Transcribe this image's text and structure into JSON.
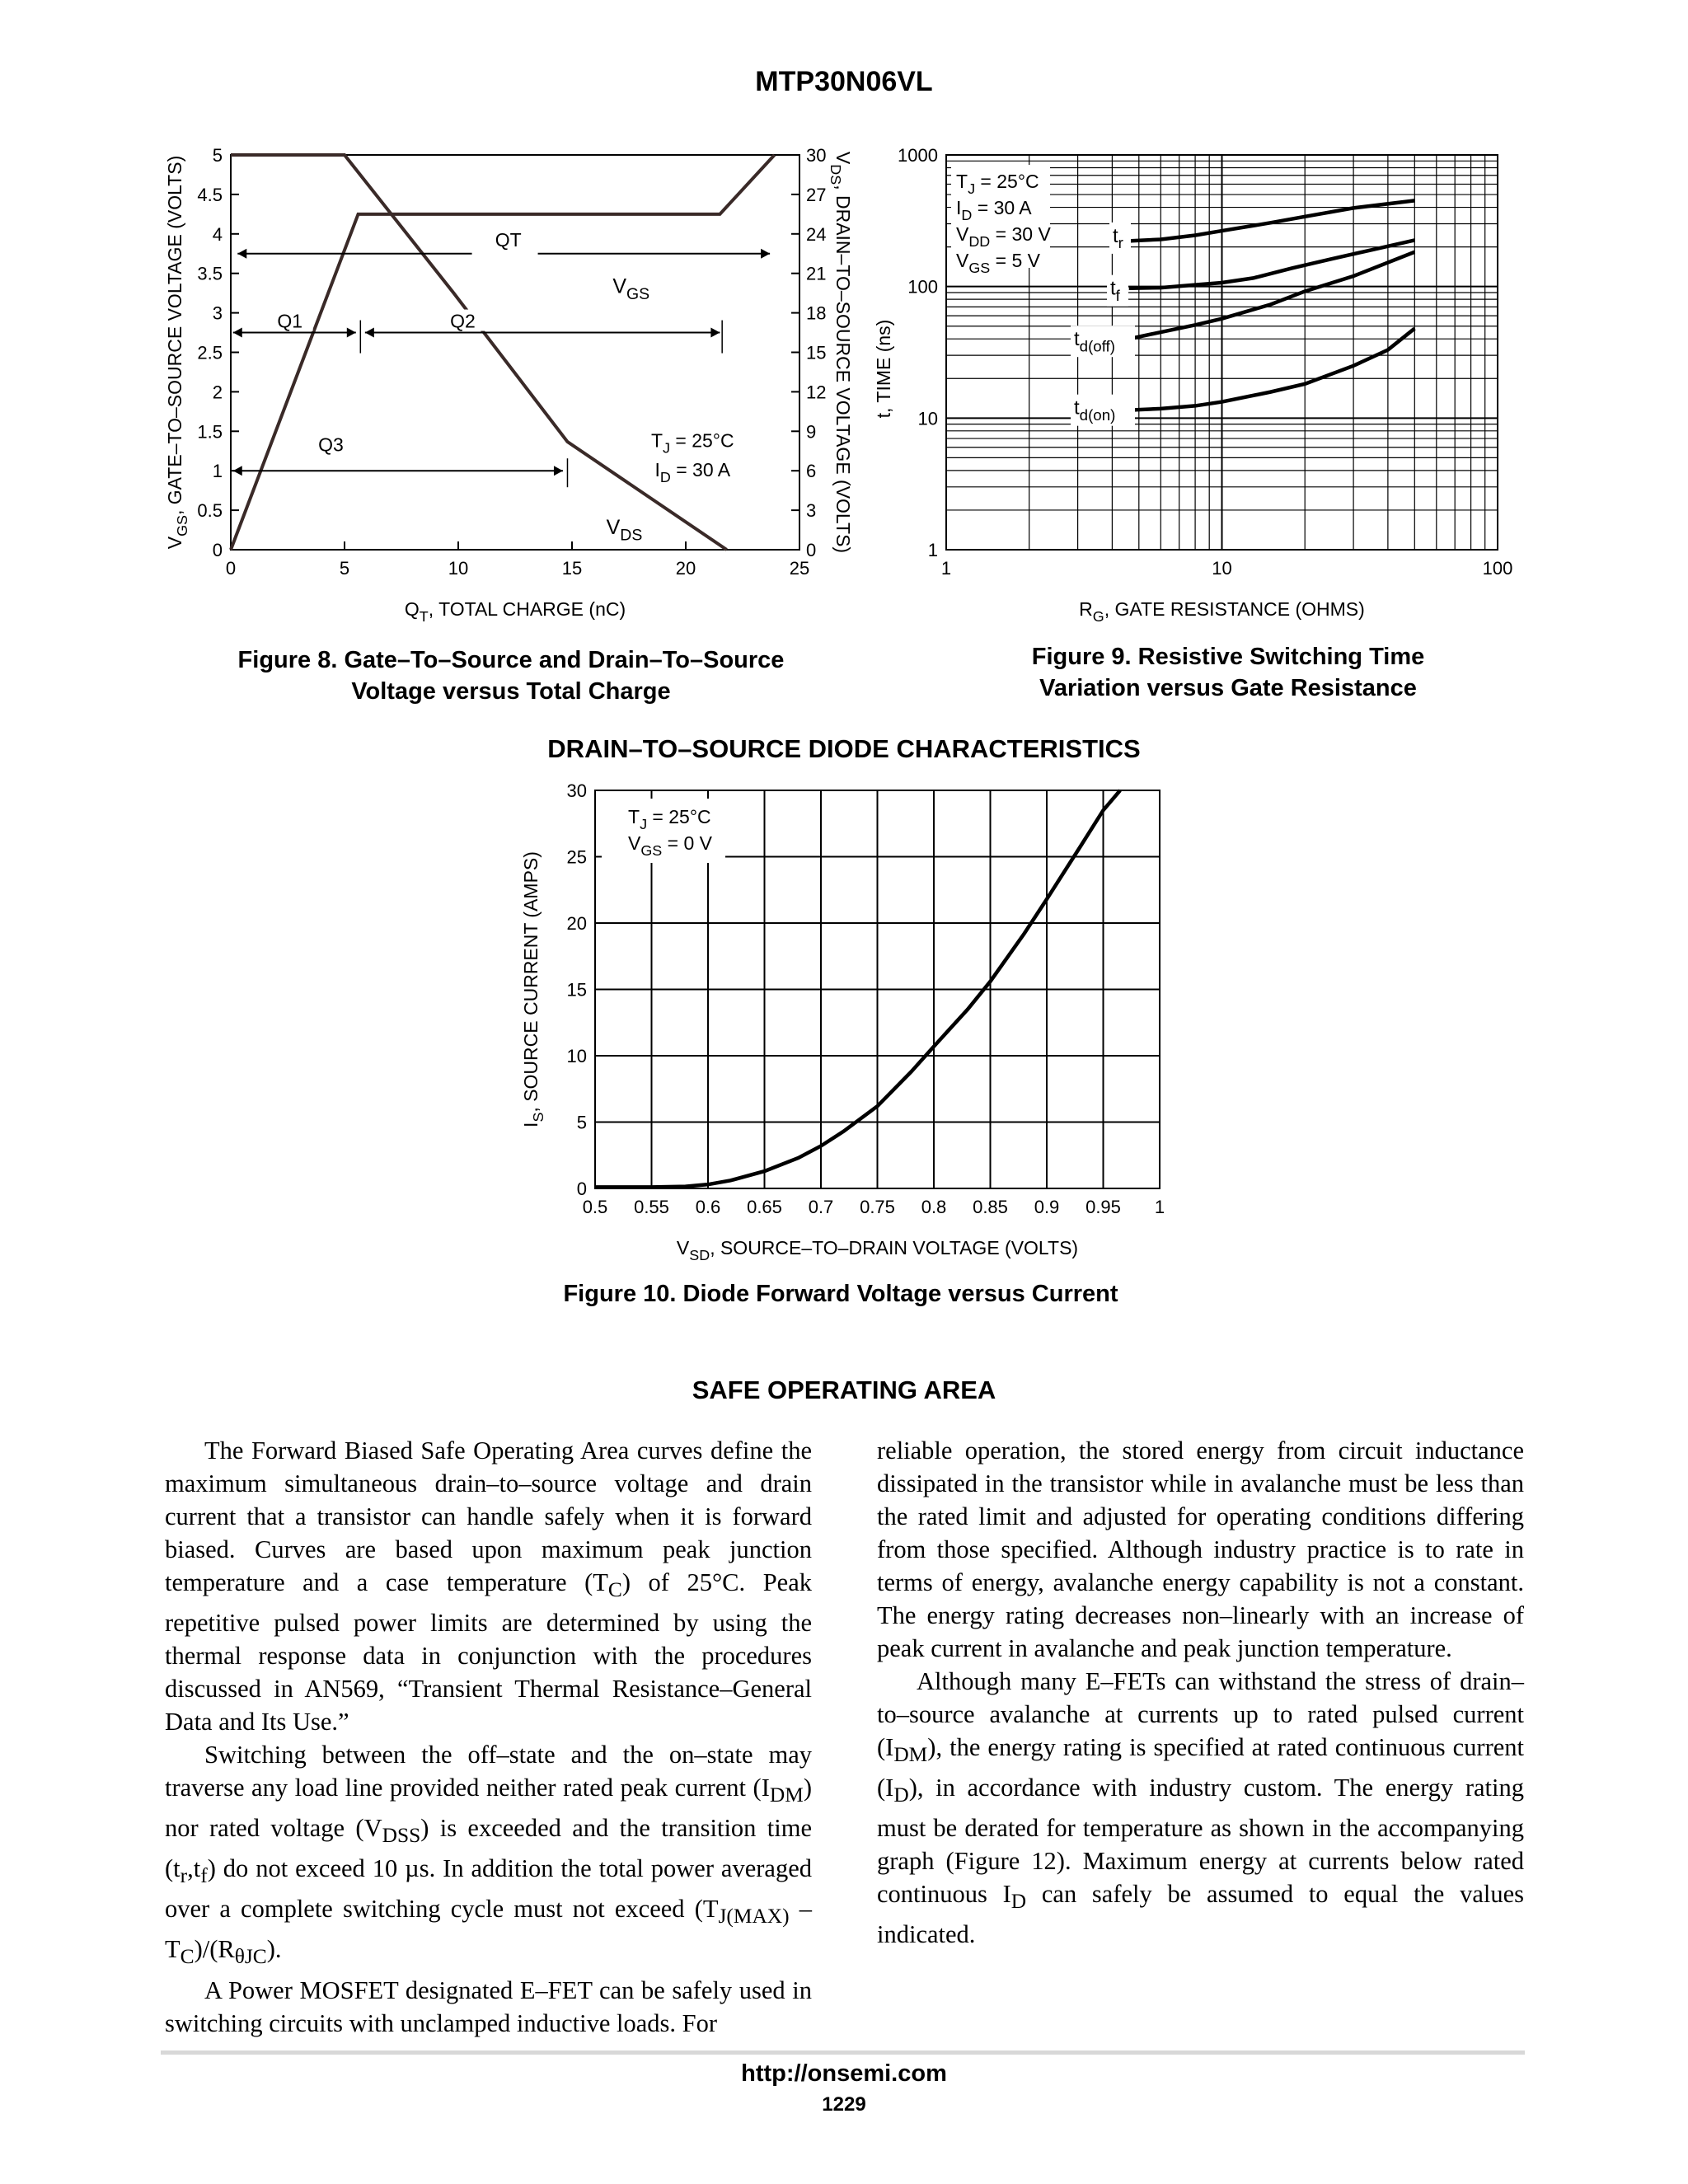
{
  "header": {
    "title": "MTP30N06VL"
  },
  "figures": {
    "fig8": {
      "caption_line1": "Figure 8. Gate–To–Source and Drain–To–Source",
      "caption_line2": "Voltage versus Total Charge"
    },
    "fig9": {
      "caption_line1": "Figure 9. Resistive Switching Time",
      "caption_line2": "Variation versus Gate Resistance"
    },
    "fig10": {
      "section_title": "DRAIN–TO–SOURCE DIODE CHARACTERISTICS",
      "caption": "Figure 10. Diode Forward Voltage versus Current"
    }
  },
  "chart_data": [
    {
      "id": "fig8",
      "type": "line",
      "xlabel_main": "Q",
      "xlabel_sub": "T",
      "xlabel_rest": ", TOTAL CHARGE (nC)",
      "ylabel_main": "V",
      "ylabel_sub": "GS",
      "ylabel_rest": ", GATE–TO–SOURCE VOLTAGE (VOLTS)",
      "y2label_main": "V",
      "y2label_sub": "DS",
      "y2label_rest": ", DRAIN–TO–SOURCE VOLTAGE (VOLTS)",
      "xlim": [
        0,
        25
      ],
      "ylim": [
        0,
        5
      ],
      "y2lim": [
        0,
        30
      ],
      "x_ticks": [
        "0",
        "5",
        "10",
        "15",
        "20",
        "25"
      ],
      "y_ticks": [
        "0",
        "0.5",
        "1",
        "1.5",
        "2",
        "2.5",
        "3",
        "3.5",
        "4",
        "4.5",
        "5"
      ],
      "y2_ticks": [
        "0",
        "3",
        "6",
        "9",
        "12",
        "15",
        "18",
        "21",
        "24",
        "27",
        "30"
      ],
      "series": [
        {
          "name": "VGS",
          "axis": "left",
          "x": [
            0,
            5.6,
            21.5,
            23.9
          ],
          "y": [
            0,
            4.25,
            4.25,
            5.0
          ]
        },
        {
          "name": "VDS",
          "axis": "right",
          "x": [
            0,
            5.0,
            9.8,
            14.8,
            21.8
          ],
          "y": [
            30,
            30,
            19.5,
            8.2,
            0
          ]
        }
      ],
      "annotations": {
        "vgs_label": "V",
        "vgs_sub": "GS",
        "vds_label": "V",
        "vds_sub": "DS",
        "qt": "QT",
        "q1": "Q1",
        "q2": "Q2",
        "q3": "Q3",
        "cond1_main": "T",
        "cond1_sub": "J",
        "cond1_rest": " = 25°C",
        "cond2_main": "I",
        "cond2_sub": "D",
        "cond2_rest": " = 30 A"
      }
    },
    {
      "id": "fig9",
      "type": "line",
      "log_x": true,
      "log_y": true,
      "xlabel_main": "R",
      "xlabel_sub": "G",
      "xlabel_rest": ", GATE RESISTANCE (OHMS)",
      "ylabel": "t, TIME (ns)",
      "xlim": [
        1,
        100
      ],
      "ylim": [
        1,
        1000
      ],
      "x_ticks": [
        "1",
        "10",
        "100"
      ],
      "y_ticks": [
        "1",
        "10",
        "100",
        "1000"
      ],
      "series": [
        {
          "name": "tr",
          "x": [
            4.6,
            6,
            8,
            10,
            15,
            20,
            30,
            50
          ],
          "y": [
            222,
            228,
            245,
            265,
            305,
            340,
            395,
            450
          ]
        },
        {
          "name": "tf",
          "x": [
            4.6,
            6,
            8,
            10,
            13,
            18,
            25,
            35,
            50
          ],
          "y": [
            97,
            98,
            103,
            107,
            116,
            138,
            162,
            190,
            225
          ]
        },
        {
          "name": "td(off)",
          "x": [
            4.6,
            6,
            8,
            10,
            15,
            20,
            30,
            50
          ],
          "y": [
            40,
            45,
            51,
            57,
            73,
            92,
            120,
            183
          ]
        },
        {
          "name": "td(on)",
          "x": [
            4.6,
            6,
            8,
            10,
            15,
            20,
            30,
            40,
            50
          ],
          "y": [
            11.5,
            11.8,
            12.4,
            13.3,
            15.8,
            18.2,
            25,
            33,
            48
          ]
        }
      ],
      "annotations": {
        "cond1_main": "T",
        "cond1_sub": "J",
        "cond1_rest": " = 25°C",
        "cond2_main": "I",
        "cond2_sub": "D",
        "cond2_rest": " = 30 A",
        "cond3_main": "V",
        "cond3_sub": "DD",
        "cond3_rest": " = 30 V",
        "cond4_main": "V",
        "cond4_sub": "GS",
        "cond4_rest": " = 5 V",
        "tr_main": "t",
        "tr_sub": "r",
        "tf_main": "t",
        "tf_sub": "f",
        "tdoff_main": "t",
        "tdoff_sub": "d(off)",
        "tdon_main": "t",
        "tdon_sub": "d(on)"
      }
    },
    {
      "id": "fig10",
      "type": "line",
      "xlabel_main": "V",
      "xlabel_sub": "SD",
      "xlabel_rest": ", SOURCE–TO–DRAIN VOLTAGE (VOLTS)",
      "ylabel_main": "I",
      "ylabel_sub": "S",
      "ylabel_rest": ", SOURCE CURRENT (AMPS)",
      "xlim": [
        0.5,
        1.0
      ],
      "ylim": [
        0,
        30
      ],
      "x_ticks": [
        "0.5",
        "0.55",
        "0.6",
        "0.65",
        "0.7",
        "0.75",
        "0.8",
        "0.85",
        "0.9",
        "0.95",
        "1"
      ],
      "y_ticks": [
        "0",
        "5",
        "10",
        "15",
        "20",
        "25",
        "30"
      ],
      "series": [
        {
          "name": "IS",
          "x": [
            0.5,
            0.55,
            0.58,
            0.6,
            0.62,
            0.65,
            0.68,
            0.7,
            0.72,
            0.75,
            0.78,
            0.8,
            0.83,
            0.85,
            0.88,
            0.9,
            0.93,
            0.95,
            0.965
          ],
          "y": [
            0.1,
            0.1,
            0.15,
            0.3,
            0.6,
            1.3,
            2.3,
            3.2,
            4.3,
            6.2,
            8.8,
            10.7,
            13.5,
            15.6,
            19.2,
            21.8,
            25.8,
            28.5,
            30
          ]
        }
      ],
      "annotations": {
        "cond1_main": "T",
        "cond1_sub": "J",
        "cond1_rest": " = 25°C",
        "cond2_main": "V",
        "cond2_sub": "GS",
        "cond2_rest": " = 0 V"
      }
    }
  ],
  "soa": {
    "title": "SAFE OPERATING AREA",
    "left": {
      "p1_a": "The Forward Biased Safe Operating Area curves define the maximum simultaneous drain–to–source voltage and drain current that a transistor can handle safely when it is forward biased. Curves are based upon maximum peak junction temperature and a case temperature (T",
      "p1_sub": "C",
      "p1_b": ") of 25°C. Peak repetitive pulsed power limits are determined by using the thermal response data in conjunction with the procedures discussed in AN569, “Transient Thermal Resistance–General Data and Its Use.”",
      "p2_a": "Switching between the off–state and the on–state may traverse any load line provided neither rated peak current (I",
      "p2_sub1": "DM",
      "p2_b": ") nor rated voltage (V",
      "p2_sub2": "DSS",
      "p2_c": ") is exceeded and the transition time (t",
      "p2_sub3": "r",
      "p2_d": ",t",
      "p2_sub4": "f",
      "p2_e": ") do not exceed 10 µs. In addition the total power averaged over a complete switching cycle must not exceed (T",
      "p2_sub5": "J(MAX)",
      "p2_f": " – T",
      "p2_sub6": "C",
      "p2_g": ")/(R",
      "p2_sub7": "θJC",
      "p2_h": ").",
      "p3": "A Power MOSFET designated E–FET can be safely used in switching circuits with unclamped inductive loads. For"
    },
    "right": {
      "p1": "reliable operation, the stored energy from circuit inductance dissipated in the transistor while in avalanche must be less than the rated limit and adjusted for operating conditions differing from those specified. Although industry practice is to rate in terms of energy, avalanche energy capability is not a constant. The energy rating decreases non–linearly with an increase of peak current in avalanche and peak junction temperature.",
      "p2_a": "Although many E–FETs can withstand the stress of drain–to–source avalanche at currents up to rated pulsed current (I",
      "p2_sub1": "DM",
      "p2_b": "), the energy rating is specified at rated continuous current (I",
      "p2_sub2": "D",
      "p2_c": "), in accordance with industry custom. The energy rating must be derated for temperature as shown in the accompanying graph (Figure 12). Maximum energy at currents below rated continuous I",
      "p2_sub3": "D",
      "p2_d": " can safely be assumed to equal the values indicated."
    }
  },
  "footer": {
    "url": "http://onsemi.com",
    "page": "1229"
  }
}
